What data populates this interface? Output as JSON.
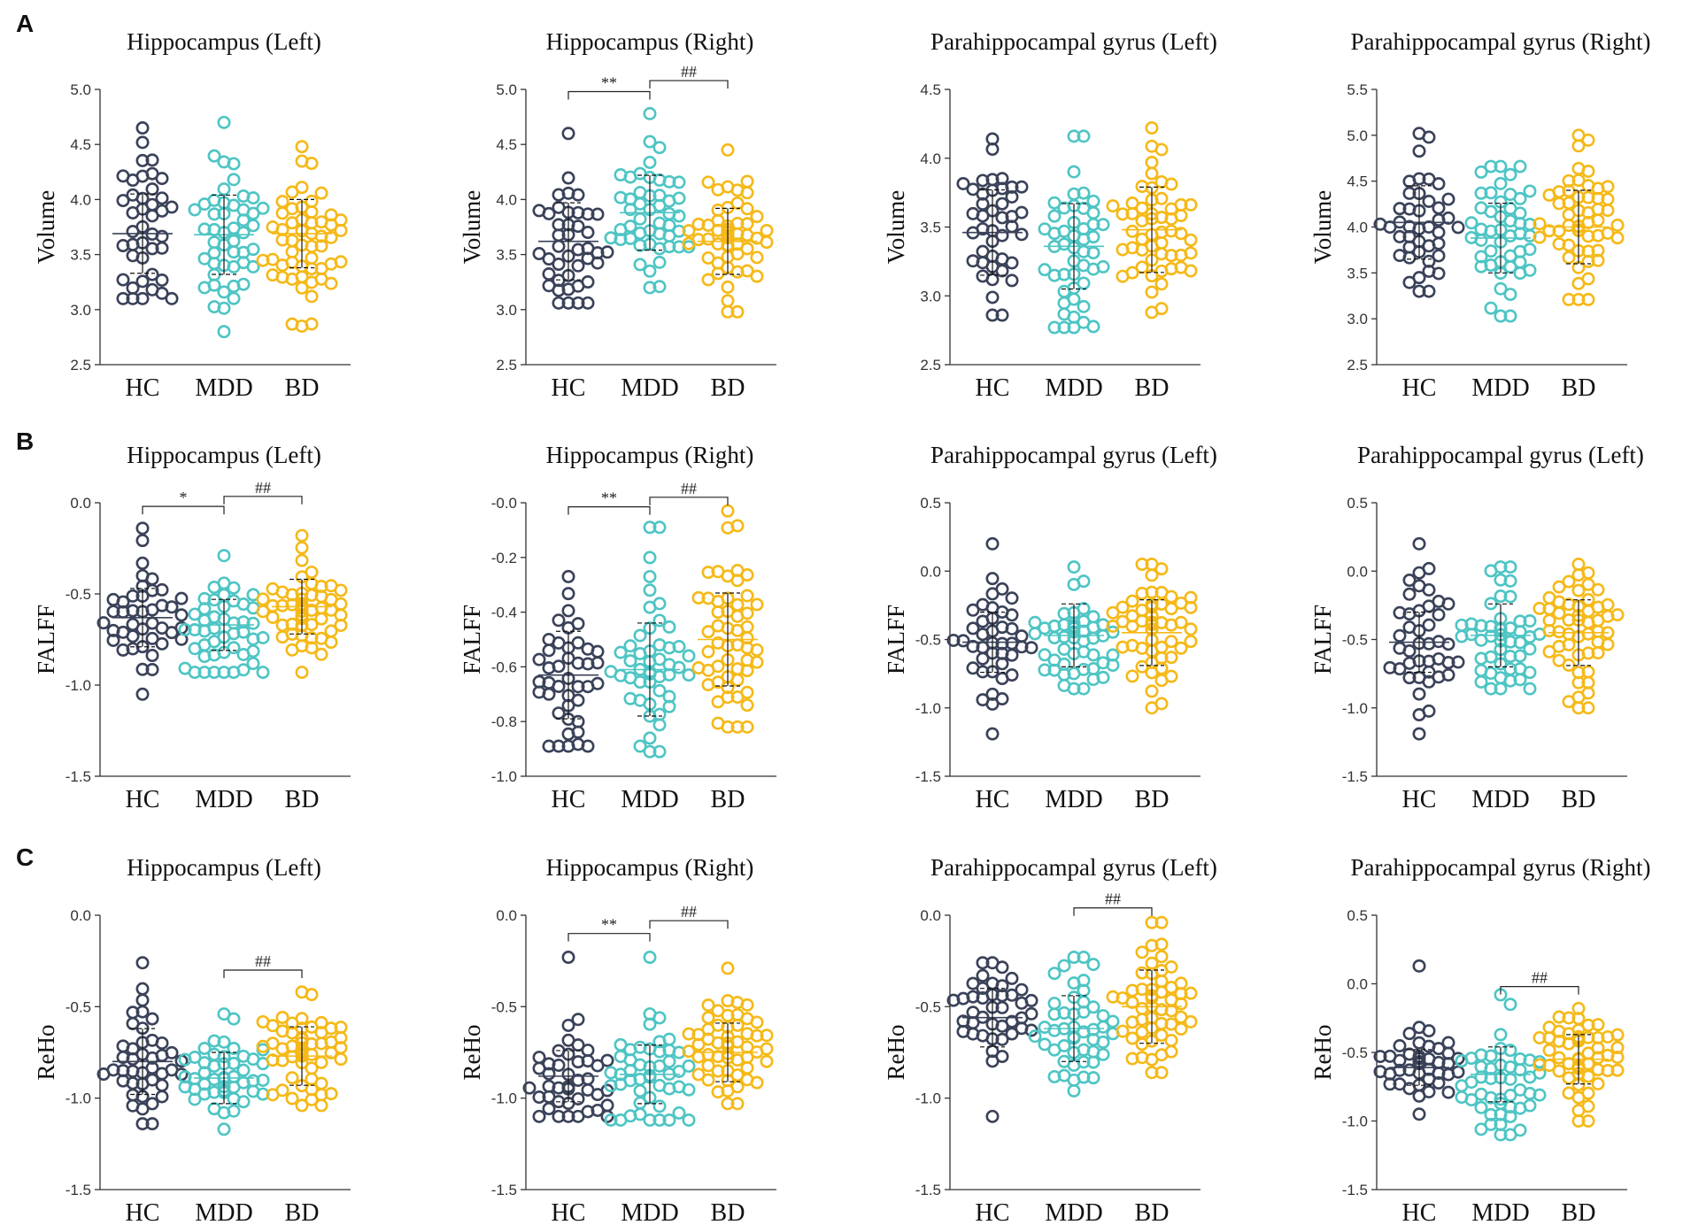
{
  "colors": {
    "HC": "#3a4259",
    "MDD": "#4ec5c4",
    "BD": "#f5b918"
  },
  "panel_labels": [
    "A",
    "B",
    "C"
  ],
  "chart_data": [
    {
      "type": "scatter",
      "row": 0,
      "col": 0,
      "title": "Hippocampus (Left)",
      "ylabel": "Volume",
      "ylim": [
        2.5,
        5.0
      ],
      "yticks": [
        "2.5",
        "3.0",
        "3.5",
        "4.0",
        "4.5",
        "5.0"
      ],
      "categories": [
        "HC",
        "MDD",
        "BD"
      ],
      "series": [
        {
          "name": "HC",
          "n": 42,
          "mean": 3.69,
          "sd": 0.36,
          "min": 3.1,
          "max": 4.65
        },
        {
          "name": "MDD",
          "n": 48,
          "mean": 3.68,
          "sd": 0.36,
          "min": 2.8,
          "max": 4.7
        },
        {
          "name": "BD",
          "n": 54,
          "mean": 3.69,
          "sd": 0.31,
          "min": 2.85,
          "max": 4.48
        }
      ],
      "brackets": []
    },
    {
      "type": "scatter",
      "row": 0,
      "col": 1,
      "title": "Hippocampus (Right)",
      "ylabel": "Volume",
      "ylim": [
        2.5,
        5.0
      ],
      "yticks": [
        "2.5",
        "3.0",
        "3.5",
        "4.0",
        "4.5",
        "5.0"
      ],
      "categories": [
        "HC",
        "MDD",
        "BD"
      ],
      "series": [
        {
          "name": "HC",
          "n": 42,
          "mean": 3.62,
          "sd": 0.35,
          "min": 3.06,
          "max": 4.6
        },
        {
          "name": "MDD",
          "n": 48,
          "mean": 3.88,
          "sd": 0.34,
          "min": 3.2,
          "max": 4.78
        },
        {
          "name": "BD",
          "n": 54,
          "mean": 3.62,
          "sd": 0.3,
          "min": 2.98,
          "max": 4.45
        }
      ],
      "brackets": [
        {
          "from": 0,
          "to": 1,
          "y": 4.98,
          "label": "**"
        },
        {
          "from": 1,
          "to": 2,
          "y": 5.08,
          "label": "##"
        }
      ]
    },
    {
      "type": "scatter",
      "row": 0,
      "col": 2,
      "title": "Parahippocampal gyrus (Left)",
      "ylabel": "Volume",
      "ylim": [
        2.5,
        4.5
      ],
      "yticks": [
        "2.5",
        "3.0",
        "3.5",
        "4.0",
        "4.5"
      ],
      "categories": [
        "HC",
        "MDD",
        "BD"
      ],
      "series": [
        {
          "name": "HC",
          "n": 42,
          "mean": 3.46,
          "sd": 0.31,
          "min": 2.86,
          "max": 4.14
        },
        {
          "name": "MDD",
          "n": 48,
          "mean": 3.36,
          "sd": 0.31,
          "min": 2.77,
          "max": 4.16
        },
        {
          "name": "BD",
          "n": 54,
          "mean": 3.48,
          "sd": 0.31,
          "min": 2.88,
          "max": 4.22
        }
      ],
      "brackets": []
    },
    {
      "type": "scatter",
      "row": 0,
      "col": 3,
      "title": "Parahippocampal gyrus (Right)",
      "ylabel": "Volume",
      "ylim": [
        2.5,
        5.5
      ],
      "yticks": [
        "2.5",
        "3.0",
        "3.5",
        "4.0",
        "4.5",
        "5.0",
        "5.5"
      ],
      "categories": [
        "HC",
        "MDD",
        "BD"
      ],
      "series": [
        {
          "name": "HC",
          "n": 42,
          "mean": 4.05,
          "sd": 0.4,
          "min": 3.3,
          "max": 5.02
        },
        {
          "name": "MDD",
          "n": 48,
          "mean": 3.88,
          "sd": 0.38,
          "min": 3.03,
          "max": 4.66
        },
        {
          "name": "BD",
          "n": 54,
          "mean": 4.0,
          "sd": 0.4,
          "min": 3.21,
          "max": 5.0
        }
      ],
      "brackets": []
    },
    {
      "type": "scatter",
      "row": 1,
      "col": 0,
      "title": "Hippocampus (Left)",
      "ylabel": "FALFF",
      "ylim": [
        -1.5,
        0.0
      ],
      "yticks": [
        "-1.5",
        "-1.0",
        "-0.5",
        "0.0"
      ],
      "categories": [
        "HC",
        "MDD",
        "BD"
      ],
      "series": [
        {
          "name": "HC",
          "n": 42,
          "mean": -0.63,
          "sd": 0.16,
          "min": -1.05,
          "max": -0.14
        },
        {
          "name": "MDD",
          "n": 48,
          "mean": -0.67,
          "sd": 0.14,
          "min": -0.93,
          "max": -0.29
        },
        {
          "name": "BD",
          "n": 54,
          "mean": -0.57,
          "sd": 0.15,
          "min": -0.93,
          "max": -0.18
        }
      ],
      "brackets": [
        {
          "from": 0,
          "to": 1,
          "y": -0.02,
          "label": "*"
        },
        {
          "from": 1,
          "to": 2,
          "y": 0.035,
          "label": "##"
        }
      ]
    },
    {
      "type": "scatter",
      "row": 1,
      "col": 1,
      "title": "Hippocampus (Right)",
      "ylabel": "FALFF",
      "ylim": [
        -1.0,
        0.0
      ],
      "yticks": [
        "-1.0",
        "-0.8",
        "-0.6",
        "-0.4",
        "-0.2",
        "-0.0"
      ],
      "categories": [
        "HC",
        "MDD",
        "BD"
      ],
      "series": [
        {
          "name": "HC",
          "n": 42,
          "mean": -0.63,
          "sd": 0.16,
          "min": -0.89,
          "max": -0.27
        },
        {
          "name": "MDD",
          "n": 48,
          "mean": -0.61,
          "sd": 0.17,
          "min": -0.91,
          "max": -0.09
        },
        {
          "name": "BD",
          "n": 54,
          "mean": -0.5,
          "sd": 0.17,
          "min": -0.82,
          "max": -0.03
        }
      ],
      "brackets": [
        {
          "from": 0,
          "to": 1,
          "y": -0.015,
          "label": "**"
        },
        {
          "from": 1,
          "to": 2,
          "y": 0.02,
          "label": "##"
        }
      ]
    },
    {
      "type": "scatter",
      "row": 1,
      "col": 2,
      "title": "Parahippocampal gyrus (Left)",
      "ylabel": "FALFF",
      "ylim": [
        -1.5,
        0.5
      ],
      "yticks": [
        "-1.5",
        "-1.0",
        "-0.5",
        "0.0",
        "0.5"
      ],
      "categories": [
        "HC",
        "MDD",
        "BD"
      ],
      "series": [
        {
          "name": "HC",
          "n": 42,
          "mean": -0.52,
          "sd": 0.22,
          "min": -1.19,
          "max": 0.2
        },
        {
          "name": "MDD",
          "n": 48,
          "mean": -0.47,
          "sd": 0.23,
          "min": -0.86,
          "max": 0.03
        },
        {
          "name": "BD",
          "n": 54,
          "mean": -0.45,
          "sd": 0.24,
          "min": -1.0,
          "max": 0.05
        }
      ],
      "brackets": []
    },
    {
      "type": "scatter",
      "row": 1,
      "col": 3,
      "title": "Parahippocampal gyrus (Left)",
      "ylabel": "FALFF",
      "ylim": [
        -1.5,
        0.5
      ],
      "yticks": [
        "-1.5",
        "-1.0",
        "-0.5",
        "0.0",
        "0.5"
      ],
      "categories": [
        "HC",
        "MDD",
        "BD"
      ],
      "series": [
        {
          "name": "HC",
          "n": 42,
          "mean": -0.52,
          "sd": 0.22,
          "min": -1.19,
          "max": 0.2
        },
        {
          "name": "MDD",
          "n": 48,
          "mean": -0.47,
          "sd": 0.23,
          "min": -0.86,
          "max": 0.03
        },
        {
          "name": "BD",
          "n": 54,
          "mean": -0.45,
          "sd": 0.24,
          "min": -1.0,
          "max": 0.05
        }
      ],
      "brackets": []
    },
    {
      "type": "scatter",
      "row": 2,
      "col": 0,
      "title": "Hippocampus (Left)",
      "ylabel": "ReHo",
      "ylim": [
        -1.5,
        0.0
      ],
      "yticks": [
        "-1.5",
        "-1.0",
        "-0.5",
        "0.0"
      ],
      "categories": [
        "HC",
        "MDD",
        "BD"
      ],
      "series": [
        {
          "name": "HC",
          "n": 42,
          "mean": -0.8,
          "sd": 0.18,
          "min": -1.14,
          "max": -0.26
        },
        {
          "name": "MDD",
          "n": 48,
          "mean": -0.89,
          "sd": 0.14,
          "min": -1.17,
          "max": -0.54
        },
        {
          "name": "BD",
          "n": 54,
          "mean": -0.77,
          "sd": 0.16,
          "min": -1.04,
          "max": -0.42
        }
      ],
      "brackets": [
        {
          "from": 1,
          "to": 2,
          "y": -0.3,
          "label": "##"
        }
      ]
    },
    {
      "type": "scatter",
      "row": 2,
      "col": 1,
      "title": "Hippocampus (Right)",
      "ylabel": "ReHo",
      "ylim": [
        -1.5,
        0.0
      ],
      "yticks": [
        "-1.5",
        "-1.0",
        "-0.5",
        "0.0"
      ],
      "categories": [
        "HC",
        "MDD",
        "BD"
      ],
      "series": [
        {
          "name": "HC",
          "n": 42,
          "mean": -0.88,
          "sd": 0.14,
          "min": -1.1,
          "max": -0.23
        },
        {
          "name": "MDD",
          "n": 48,
          "mean": -0.87,
          "sd": 0.16,
          "min": -1.12,
          "max": -0.23
        },
        {
          "name": "BD",
          "n": 54,
          "mean": -0.75,
          "sd": 0.16,
          "min": -1.03,
          "max": -0.29
        }
      ],
      "brackets": [
        {
          "from": 0,
          "to": 1,
          "y": -0.1,
          "label": "**"
        },
        {
          "from": 1,
          "to": 2,
          "y": -0.03,
          "label": "##"
        }
      ]
    },
    {
      "type": "scatter",
      "row": 2,
      "col": 2,
      "title": "Parahippocampal gyrus (Left)",
      "ylabel": "ReHo",
      "ylim": [
        -1.5,
        0.0
      ],
      "yticks": [
        "-1.5",
        "-1.0",
        "-0.5",
        "0.0"
      ],
      "categories": [
        "HC",
        "MDD",
        "BD"
      ],
      "series": [
        {
          "name": "HC",
          "n": 42,
          "mean": -0.56,
          "sd": 0.16,
          "min": -1.1,
          "max": -0.26
        },
        {
          "name": "MDD",
          "n": 48,
          "mean": -0.62,
          "sd": 0.18,
          "min": -0.96,
          "max": -0.23
        },
        {
          "name": "BD",
          "n": 54,
          "mean": -0.5,
          "sd": 0.2,
          "min": -0.86,
          "max": -0.04
        }
      ],
      "brackets": [
        {
          "from": 1,
          "to": 2,
          "y": 0.04,
          "label": "##"
        }
      ]
    },
    {
      "type": "scatter",
      "row": 2,
      "col": 3,
      "title": "Parahippocampal gyrus (Right)",
      "ylabel": "ReHo",
      "ylim": [
        -1.5,
        0.5
      ],
      "yticks": [
        "-1.5",
        "-1.0",
        "-0.5",
        "0.0",
        "0.5"
      ],
      "categories": [
        "HC",
        "MDD",
        "BD"
      ],
      "series": [
        {
          "name": "HC",
          "n": 42,
          "mean": -0.61,
          "sd": 0.13,
          "min": -0.95,
          "max": 0.13
        },
        {
          "name": "MDD",
          "n": 48,
          "mean": -0.66,
          "sd": 0.2,
          "min": -1.1,
          "max": -0.08
        },
        {
          "name": "BD",
          "n": 54,
          "mean": -0.55,
          "sd": 0.18,
          "min": -1.0,
          "max": -0.18
        }
      ],
      "brackets": [
        {
          "from": 1,
          "to": 2,
          "y": -0.02,
          "label": "##"
        }
      ]
    }
  ]
}
